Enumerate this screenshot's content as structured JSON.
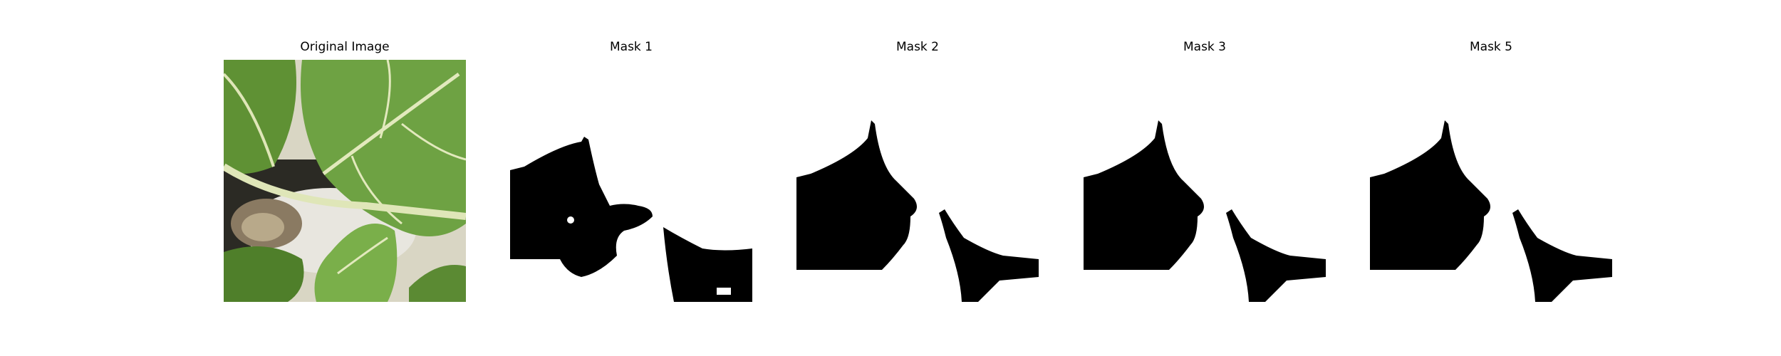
{
  "figure": {
    "panels": [
      {
        "title": "Original Image",
        "kind": "photo",
        "content": "green-leaves-photo"
      },
      {
        "title": "Mask 1",
        "kind": "binary-mask"
      },
      {
        "title": "Mask 2",
        "kind": "binary-mask"
      },
      {
        "title": "Mask 3",
        "kind": "binary-mask"
      },
      {
        "title": "Mask 5",
        "kind": "binary-mask"
      }
    ],
    "colors": {
      "mask_foreground": "#000000",
      "mask_background": "#ffffff",
      "leaf_green": "#6a9a3c",
      "leaf_dark": "#3f6b25",
      "vein": "#dfe6b8"
    }
  }
}
